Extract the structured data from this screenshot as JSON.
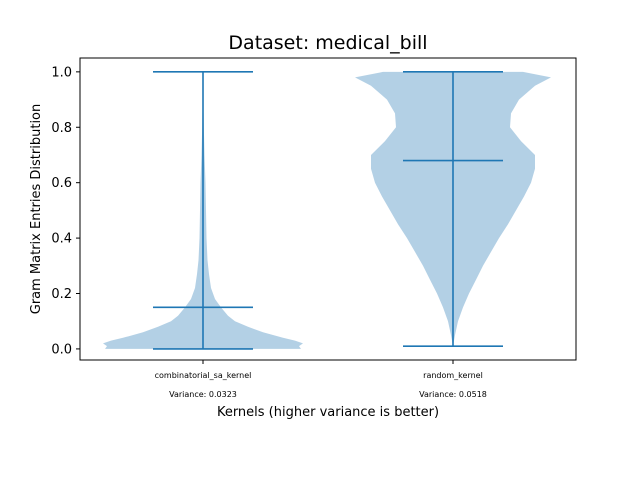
{
  "chart_data": {
    "type": "violin",
    "title": "Dataset: medical_bill",
    "xlabel": "Kernels (higher variance is better)",
    "ylabel": "Gram Matrix Entries Distribution",
    "ylim": [
      -0.04,
      1.05
    ],
    "yticks": [
      "0.0",
      "0.2",
      "0.4",
      "0.6",
      "0.8",
      "1.0"
    ],
    "grid": false,
    "colors": {
      "body": "#a6c8e0",
      "line": "#1f77b4"
    },
    "violins": [
      {
        "category": "combinatorial_sa_kernel",
        "variance_label": "Variance: 0.0323",
        "min": 0.0,
        "median": 0.15,
        "max": 1.0,
        "density": [
          [
            0.0,
            0.98
          ],
          [
            0.01,
            0.96
          ],
          [
            0.02,
            1.0
          ],
          [
            0.03,
            0.92
          ],
          [
            0.04,
            0.8
          ],
          [
            0.06,
            0.6
          ],
          [
            0.08,
            0.45
          ],
          [
            0.1,
            0.32
          ],
          [
            0.12,
            0.25
          ],
          [
            0.15,
            0.18
          ],
          [
            0.18,
            0.12
          ],
          [
            0.22,
            0.08
          ],
          [
            0.27,
            0.06
          ],
          [
            0.32,
            0.045
          ],
          [
            0.4,
            0.035
          ],
          [
            0.5,
            0.03
          ],
          [
            0.6,
            0.025
          ],
          [
            0.7,
            0.015
          ],
          [
            0.8,
            0.008
          ],
          [
            0.9,
            0.003
          ],
          [
            1.0,
            0.0
          ]
        ]
      },
      {
        "category": "random_kernel",
        "variance_label": "Variance: 0.0518",
        "min": 0.01,
        "median": 0.68,
        "max": 1.0,
        "density": [
          [
            0.01,
            0.0
          ],
          [
            0.05,
            0.02
          ],
          [
            0.1,
            0.05
          ],
          [
            0.15,
            0.1
          ],
          [
            0.2,
            0.16
          ],
          [
            0.25,
            0.23
          ],
          [
            0.3,
            0.3
          ],
          [
            0.35,
            0.38
          ],
          [
            0.4,
            0.46
          ],
          [
            0.45,
            0.55
          ],
          [
            0.5,
            0.63
          ],
          [
            0.55,
            0.71
          ],
          [
            0.6,
            0.78
          ],
          [
            0.65,
            0.82
          ],
          [
            0.7,
            0.82
          ],
          [
            0.75,
            0.68
          ],
          [
            0.8,
            0.57
          ],
          [
            0.85,
            0.58
          ],
          [
            0.9,
            0.66
          ],
          [
            0.95,
            0.82
          ],
          [
            0.98,
            0.98
          ],
          [
            1.0,
            0.7
          ]
        ]
      }
    ]
  }
}
